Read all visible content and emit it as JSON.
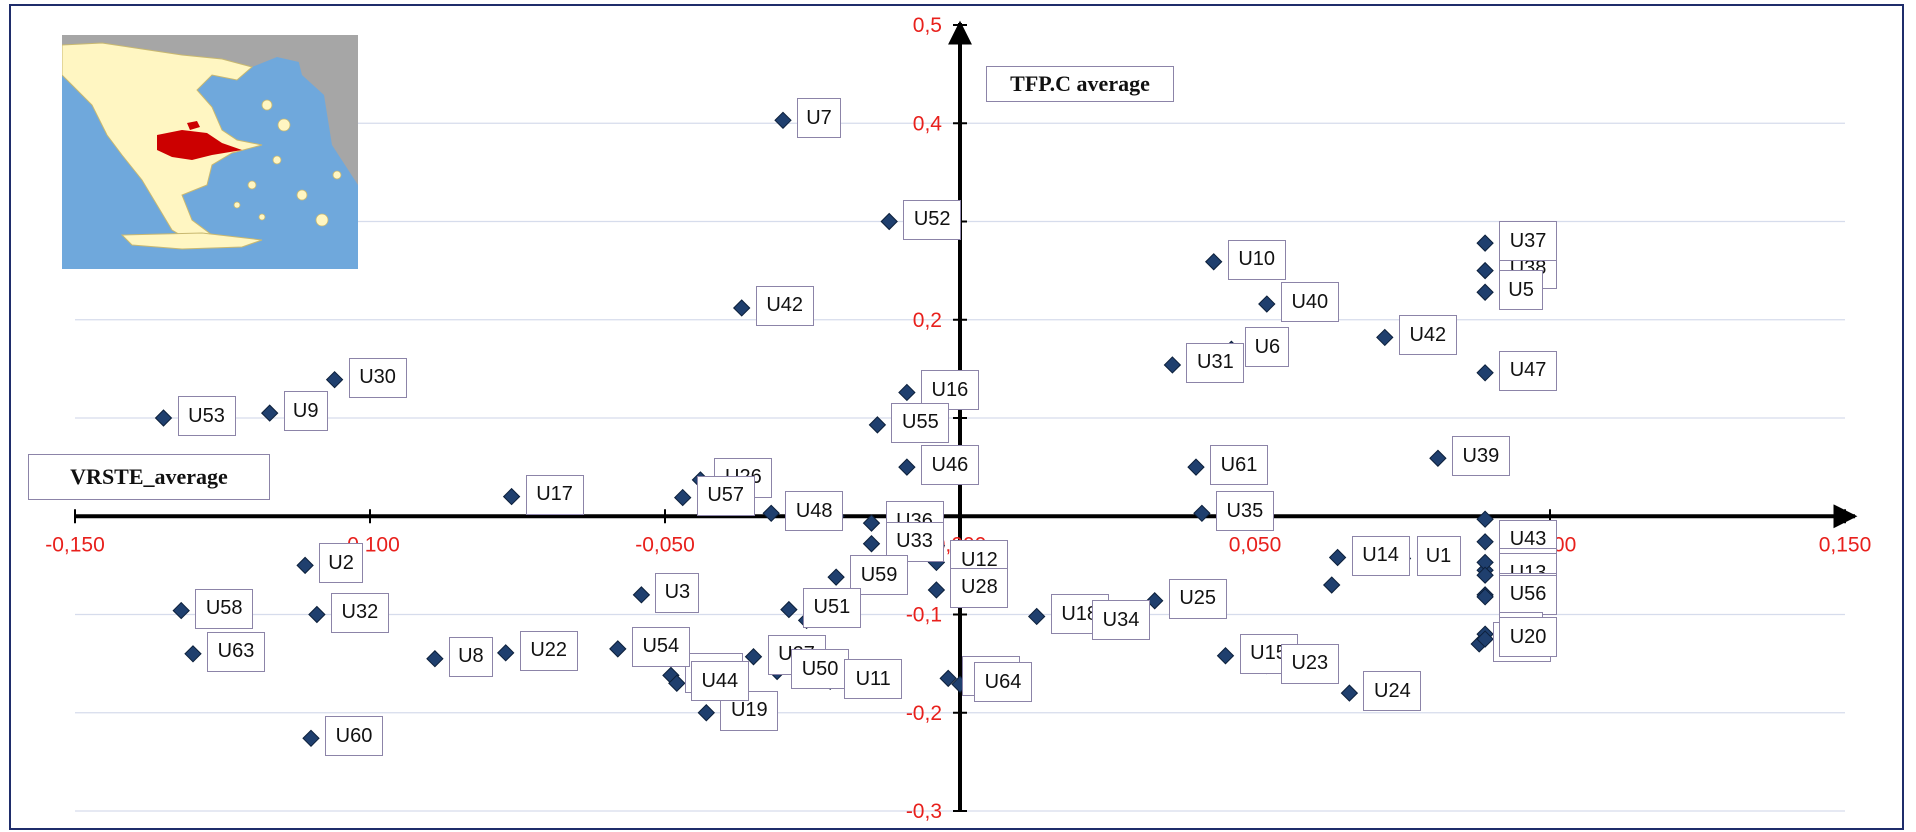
{
  "chart_data": {
    "type": "scatter",
    "title": "",
    "xlabel": "VRSTE_average",
    "ylabel": "TFP.C average",
    "xlim": [
      -0.15,
      0.15
    ],
    "ylim": [
      -0.3,
      0.5
    ],
    "x_ticks": [
      "-0,150",
      "-0,100",
      "-0,050",
      "0,000",
      "0,050",
      "0,100",
      "0,150"
    ],
    "x_tick_values": [
      -0.15,
      -0.1,
      -0.05,
      0.0,
      0.05,
      0.1,
      0.15
    ],
    "y_ticks": [
      "0,5",
      "0,4",
      "0,3",
      "0,2",
      "0,1",
      "-0,1",
      "-0,2",
      "-0,3"
    ],
    "y_tick_values": [
      0.5,
      0.4,
      0.3,
      0.2,
      0.1,
      -0.1,
      -0.2,
      -0.3
    ],
    "grid": true,
    "marker_color": "#1f3f6e",
    "tick_color": "#e8201c",
    "points": [
      {
        "label": "U7",
        "x": -0.03,
        "y": 0.403
      },
      {
        "label": "U52",
        "x": -0.012,
        "y": 0.3
      },
      {
        "label": "U42",
        "x": -0.037,
        "y": 0.212
      },
      {
        "label": "U30",
        "x": -0.106,
        "y": 0.139
      },
      {
        "label": "U9",
        "x": -0.117,
        "y": 0.105
      },
      {
        "label": "U53",
        "x": -0.135,
        "y": 0.1
      },
      {
        "label": "U16",
        "x": -0.009,
        "y": 0.126
      },
      {
        "label": "",
        "x": -0.005,
        "y": 0.097
      },
      {
        "label": "U55",
        "x": -0.014,
        "y": 0.093
      },
      {
        "label": "U46",
        "x": -0.009,
        "y": 0.05
      },
      {
        "label": "U26",
        "x": -0.044,
        "y": 0.037
      },
      {
        "label": "U17",
        "x": -0.076,
        "y": 0.02
      },
      {
        "label": "U57",
        "x": -0.047,
        "y": 0.019
      },
      {
        "label": "U48",
        "x": -0.032,
        "y": 0.003
      },
      {
        "label": "",
        "x": -0.021,
        "y": 0.0
      },
      {
        "label": "U36",
        "x": -0.015,
        "y": -0.007
      },
      {
        "label": "U33",
        "x": -0.015,
        "y": -0.028
      },
      {
        "label": "U12",
        "x": -0.004,
        "y": -0.047
      },
      {
        "label": "",
        "x": -0.004,
        "y": -0.03
      },
      {
        "label": "",
        "x": 0.0,
        "y": -0.035
      },
      {
        "label": "U28",
        "x": -0.004,
        "y": -0.075
      },
      {
        "label": "U59",
        "x": -0.021,
        "y": -0.062
      },
      {
        "label": "U51",
        "x": -0.029,
        "y": -0.095
      },
      {
        "label": "U27",
        "x": -0.035,
        "y": -0.143
      },
      {
        "label": "",
        "x": -0.026,
        "y": -0.106
      },
      {
        "label": "U50",
        "x": -0.031,
        "y": -0.158
      },
      {
        "label": "U11",
        "x": -0.022,
        "y": -0.168
      },
      {
        "label": "U45",
        "x": -0.049,
        "y": -0.162
      },
      {
        "label": "U19",
        "x": -0.043,
        "y": -0.2
      },
      {
        "label": "U3",
        "x": -0.054,
        "y": -0.08
      },
      {
        "label": "U54",
        "x": -0.058,
        "y": -0.135
      },
      {
        "label": "U44",
        "x": -0.048,
        "y": -0.17
      },
      {
        "label": "U22",
        "x": -0.077,
        "y": -0.139
      },
      {
        "label": "U8",
        "x": -0.089,
        "y": -0.145
      },
      {
        "label": "U2",
        "x": -0.111,
        "y": -0.05
      },
      {
        "label": "U32",
        "x": -0.109,
        "y": -0.1
      },
      {
        "label": "U58",
        "x": -0.132,
        "y": -0.096
      },
      {
        "label": "U63",
        "x": -0.13,
        "y": -0.14
      },
      {
        "label": "U60",
        "x": -0.11,
        "y": -0.226
      },
      {
        "label": "U29",
        "x": -0.002,
        "y": -0.165
      },
      {
        "label": "U64",
        "x": 0.0,
        "y": -0.171
      },
      {
        "label": "U18",
        "x": 0.013,
        "y": -0.102
      },
      {
        "label": "U34",
        "x": 0.02,
        "y": -0.108
      },
      {
        "label": "U10",
        "x": 0.043,
        "y": 0.259
      },
      {
        "label": "U40",
        "x": 0.052,
        "y": 0.216
      },
      {
        "label": "U6",
        "x": 0.046,
        "y": 0.17
      },
      {
        "label": "U31",
        "x": 0.036,
        "y": 0.154
      },
      {
        "label": "U61",
        "x": 0.04,
        "y": 0.05
      },
      {
        "label": "U35",
        "x": 0.041,
        "y": 0.003
      },
      {
        "label": "U25",
        "x": 0.033,
        "y": -0.086
      },
      {
        "label": "U15",
        "x": 0.045,
        "y": -0.142
      },
      {
        "label": "U23",
        "x": 0.052,
        "y": -0.152
      },
      {
        "label": "U14",
        "x": 0.064,
        "y": -0.042
      },
      {
        "label": "",
        "x": 0.063,
        "y": -0.07
      },
      {
        "label": "U42",
        "x": 0.072,
        "y": 0.182
      },
      {
        "label": "U38",
        "x": 0.089,
        "y": 0.25
      },
      {
        "label": "U37",
        "x": 0.089,
        "y": 0.278
      },
      {
        "label": "U5",
        "x": 0.089,
        "y": 0.228
      },
      {
        "label": "U47",
        "x": 0.089,
        "y": 0.146
      },
      {
        "label": "U39",
        "x": 0.081,
        "y": 0.059
      },
      {
        "label": "",
        "x": 0.089,
        "y": -0.003
      },
      {
        "label": "U43",
        "x": 0.089,
        "y": -0.026
      },
      {
        "label": "U1",
        "x": 0.075,
        "y": -0.043
      },
      {
        "label": "U62",
        "x": 0.089,
        "y": -0.055
      },
      {
        "label": "",
        "x": 0.089,
        "y": -0.047
      },
      {
        "label": "U13",
        "x": 0.089,
        "y": -0.06
      },
      {
        "label": "U21",
        "x": 0.089,
        "y": -0.08
      },
      {
        "label": "U56",
        "x": 0.089,
        "y": -0.082
      },
      {
        "label": "U4",
        "x": 0.089,
        "y": -0.12
      },
      {
        "label": "U41",
        "x": 0.088,
        "y": -0.13
      },
      {
        "label": "U20",
        "x": 0.089,
        "y": -0.125
      },
      {
        "label": "U24",
        "x": 0.066,
        "y": -0.18
      }
    ]
  }
}
